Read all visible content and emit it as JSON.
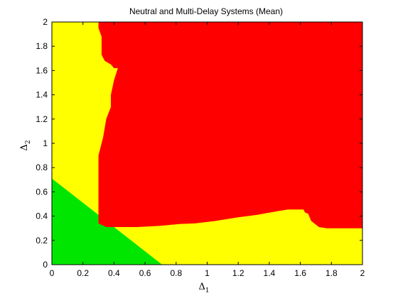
{
  "chart_data": {
    "type": "heatmap",
    "title": "Neutral and Multi-Delay Systems (Mean)",
    "xlabel": "Δ",
    "xlabel_subscript": "1",
    "ylabel": "Δ",
    "ylabel_subscript": "2",
    "xlim": [
      0,
      2
    ],
    "ylim": [
      0,
      2
    ],
    "xticks": [
      0,
      0.2,
      0.4,
      0.6,
      0.8,
      1,
      1.2,
      1.4,
      1.6,
      1.8,
      2
    ],
    "yticks": [
      0,
      0.2,
      0.4,
      0.6,
      0.8,
      1,
      1.2,
      1.4,
      1.6,
      1.8,
      2
    ],
    "grid": false,
    "colors": {
      "green": "#00e600",
      "yellow": "#ffff00",
      "red": "#ff0000",
      "background": "#ffffff"
    },
    "regions": [
      {
        "color": "yellow",
        "polygon": [
          [
            0,
            0
          ],
          [
            2,
            0
          ],
          [
            2,
            2
          ],
          [
            0,
            2
          ]
        ]
      },
      {
        "color": "green",
        "polygon": [
          [
            0,
            0
          ],
          [
            0.71,
            0
          ],
          [
            0,
            0.71
          ]
        ]
      },
      {
        "color": "red",
        "polygon": [
          [
            0.3,
            2
          ],
          [
            2,
            2
          ],
          [
            2,
            0.3
          ],
          [
            1.77,
            0.3
          ],
          [
            1.72,
            0.31
          ],
          [
            1.67,
            0.36
          ],
          [
            1.65,
            0.42
          ],
          [
            1.63,
            0.43
          ],
          [
            1.62,
            0.455
          ],
          [
            1.52,
            0.455
          ],
          [
            1.45,
            0.44
          ],
          [
            1.32,
            0.41
          ],
          [
            1.2,
            0.39
          ],
          [
            1.05,
            0.36
          ],
          [
            0.92,
            0.34
          ],
          [
            0.82,
            0.335
          ],
          [
            0.7,
            0.32
          ],
          [
            0.55,
            0.31
          ],
          [
            0.42,
            0.31
          ],
          [
            0.35,
            0.31
          ],
          [
            0.3,
            0.34
          ],
          [
            0.3,
            0.9
          ],
          [
            0.33,
            1.05
          ],
          [
            0.35,
            1.2
          ],
          [
            0.38,
            1.3
          ],
          [
            0.38,
            1.4
          ],
          [
            0.4,
            1.52
          ],
          [
            0.42,
            1.6
          ],
          [
            0.44,
            1.68
          ],
          [
            0.46,
            1.68
          ],
          [
            0.45,
            1.62
          ],
          [
            0.4,
            1.62
          ],
          [
            0.38,
            1.65
          ],
          [
            0.34,
            1.68
          ],
          [
            0.32,
            1.73
          ],
          [
            0.32,
            1.88
          ],
          [
            0.3,
            1.95
          ]
        ]
      }
    ]
  }
}
